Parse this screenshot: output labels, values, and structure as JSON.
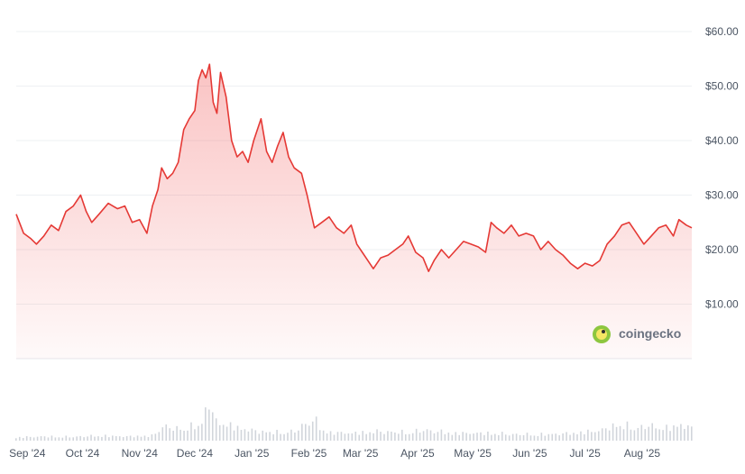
{
  "chart_data": {
    "type": "area",
    "title": "",
    "xlabel": "",
    "ylabel": "",
    "ylim": [
      0,
      60
    ],
    "y_ticks": [
      "$10.00",
      "$20.00",
      "$30.00",
      "$40.00",
      "$50.00",
      "$60.00"
    ],
    "y_tick_values": [
      10,
      20,
      30,
      40,
      50,
      60
    ],
    "x_ticks": [
      "Sep '24",
      "Oct '24",
      "Nov '24",
      "Dec '24",
      "Jan '25",
      "Feb '25",
      "Mar '25",
      "Apr '25",
      "May '25",
      "Jun '25",
      "Jul '25",
      "Aug '25"
    ],
    "x_tick_dates": [
      "2024-09-01",
      "2024-10-01",
      "2024-11-01",
      "2024-12-01",
      "2025-01-01",
      "2025-02-01",
      "2025-03-01",
      "2025-04-01",
      "2025-05-01",
      "2025-06-01",
      "2025-07-01",
      "2025-08-01"
    ],
    "x_range": [
      "2024-08-26",
      "2025-08-28"
    ],
    "grid": true,
    "legend": "none",
    "series": [
      {
        "kind": "price",
        "color": "#e53935",
        "points": [
          [
            "2024-08-26",
            26.5
          ],
          [
            "2024-08-30",
            23.0
          ],
          [
            "2024-09-03",
            22.0
          ],
          [
            "2024-09-06",
            21.0
          ],
          [
            "2024-09-10",
            22.5
          ],
          [
            "2024-09-14",
            24.5
          ],
          [
            "2024-09-18",
            23.5
          ],
          [
            "2024-09-22",
            27.0
          ],
          [
            "2024-09-26",
            28.0
          ],
          [
            "2024-09-30",
            30.0
          ],
          [
            "2024-10-03",
            27.0
          ],
          [
            "2024-10-06",
            25.0
          ],
          [
            "2024-10-10",
            26.5
          ],
          [
            "2024-10-15",
            28.5
          ],
          [
            "2024-10-20",
            27.5
          ],
          [
            "2024-10-24",
            28.0
          ],
          [
            "2024-10-28",
            25.0
          ],
          [
            "2024-11-01",
            25.5
          ],
          [
            "2024-11-05",
            23.0
          ],
          [
            "2024-11-08",
            28.0
          ],
          [
            "2024-11-11",
            31.0
          ],
          [
            "2024-11-13",
            35.0
          ],
          [
            "2024-11-16",
            33.0
          ],
          [
            "2024-11-19",
            34.0
          ],
          [
            "2024-11-22",
            36.0
          ],
          [
            "2024-11-25",
            42.0
          ],
          [
            "2024-11-28",
            44.0
          ],
          [
            "2024-12-01",
            45.5
          ],
          [
            "2024-12-03",
            51.0
          ],
          [
            "2024-12-05",
            53.0
          ],
          [
            "2024-12-07",
            51.5
          ],
          [
            "2024-12-09",
            54.0
          ],
          [
            "2024-12-11",
            47.0
          ],
          [
            "2024-12-13",
            45.0
          ],
          [
            "2024-12-15",
            52.5
          ],
          [
            "2024-12-18",
            48.0
          ],
          [
            "2024-12-21",
            40.0
          ],
          [
            "2024-12-24",
            37.0
          ],
          [
            "2024-12-27",
            38.0
          ],
          [
            "2024-12-30",
            36.0
          ],
          [
            "2025-01-02",
            40.0
          ],
          [
            "2025-01-06",
            44.0
          ],
          [
            "2025-01-09",
            38.0
          ],
          [
            "2025-01-12",
            36.0
          ],
          [
            "2025-01-15",
            39.0
          ],
          [
            "2025-01-18",
            41.5
          ],
          [
            "2025-01-21",
            37.0
          ],
          [
            "2025-01-24",
            35.0
          ],
          [
            "2025-01-28",
            34.0
          ],
          [
            "2025-01-31",
            30.0
          ],
          [
            "2025-02-02",
            27.0
          ],
          [
            "2025-02-04",
            24.0
          ],
          [
            "2025-02-08",
            25.0
          ],
          [
            "2025-02-12",
            26.0
          ],
          [
            "2025-02-16",
            24.0
          ],
          [
            "2025-02-20",
            23.0
          ],
          [
            "2025-02-24",
            24.5
          ],
          [
            "2025-02-27",
            21.0
          ],
          [
            "2025-03-02",
            19.5
          ],
          [
            "2025-03-05",
            18.0
          ],
          [
            "2025-03-08",
            16.5
          ],
          [
            "2025-03-12",
            18.5
          ],
          [
            "2025-03-16",
            19.0
          ],
          [
            "2025-03-20",
            20.0
          ],
          [
            "2025-03-24",
            21.0
          ],
          [
            "2025-03-27",
            22.5
          ],
          [
            "2025-03-31",
            19.5
          ],
          [
            "2025-04-04",
            18.5
          ],
          [
            "2025-04-07",
            16.0
          ],
          [
            "2025-04-10",
            18.0
          ],
          [
            "2025-04-14",
            20.0
          ],
          [
            "2025-04-18",
            18.5
          ],
          [
            "2025-04-22",
            20.0
          ],
          [
            "2025-04-26",
            21.5
          ],
          [
            "2025-04-30",
            21.0
          ],
          [
            "2025-05-04",
            20.5
          ],
          [
            "2025-05-08",
            19.5
          ],
          [
            "2025-05-11",
            25.0
          ],
          [
            "2025-05-14",
            24.0
          ],
          [
            "2025-05-18",
            23.0
          ],
          [
            "2025-05-22",
            24.5
          ],
          [
            "2025-05-26",
            22.5
          ],
          [
            "2025-05-30",
            23.0
          ],
          [
            "2025-06-03",
            22.5
          ],
          [
            "2025-06-07",
            20.0
          ],
          [
            "2025-06-11",
            21.5
          ],
          [
            "2025-06-15",
            20.0
          ],
          [
            "2025-06-19",
            19.0
          ],
          [
            "2025-06-23",
            17.5
          ],
          [
            "2025-06-27",
            16.5
          ],
          [
            "2025-07-01",
            17.5
          ],
          [
            "2025-07-05",
            17.0
          ],
          [
            "2025-07-09",
            18.0
          ],
          [
            "2025-07-13",
            21.0
          ],
          [
            "2025-07-17",
            22.5
          ],
          [
            "2025-07-21",
            24.5
          ],
          [
            "2025-07-25",
            25.0
          ],
          [
            "2025-07-29",
            23.0
          ],
          [
            "2025-08-02",
            21.0
          ],
          [
            "2025-08-06",
            22.5
          ],
          [
            "2025-08-10",
            24.0
          ],
          [
            "2025-08-14",
            24.5
          ],
          [
            "2025-08-18",
            22.5
          ],
          [
            "2025-08-21",
            25.5
          ],
          [
            "2025-08-25",
            24.5
          ],
          [
            "2025-08-28",
            24.0
          ]
        ]
      },
      {
        "kind": "volume",
        "color": "#d1d5db",
        "points": [
          [
            "2024-08-26",
            0.08
          ],
          [
            "2024-09-10",
            0.1
          ],
          [
            "2024-09-25",
            0.09
          ],
          [
            "2024-10-10",
            0.12
          ],
          [
            "2024-10-25",
            0.1
          ],
          [
            "2024-11-08",
            0.12
          ],
          [
            "2024-11-14",
            0.35
          ],
          [
            "2024-11-20",
            0.28
          ],
          [
            "2024-11-25",
            0.3
          ],
          [
            "2024-12-01",
            0.35
          ],
          [
            "2024-12-05",
            0.42
          ],
          [
            "2024-12-09",
            1.0
          ],
          [
            "2024-12-12",
            0.45
          ],
          [
            "2024-12-18",
            0.4
          ],
          [
            "2024-12-25",
            0.3
          ],
          [
            "2025-01-05",
            0.22
          ],
          [
            "2025-01-15",
            0.2
          ],
          [
            "2025-01-25",
            0.22
          ],
          [
            "2025-02-03",
            0.55
          ],
          [
            "2025-02-10",
            0.2
          ],
          [
            "2025-02-25",
            0.18
          ],
          [
            "2025-03-10",
            0.22
          ],
          [
            "2025-03-25",
            0.2
          ],
          [
            "2025-04-07",
            0.25
          ],
          [
            "2025-04-20",
            0.18
          ],
          [
            "2025-05-10",
            0.18
          ],
          [
            "2025-05-25",
            0.15
          ],
          [
            "2025-06-10",
            0.15
          ],
          [
            "2025-06-25",
            0.18
          ],
          [
            "2025-07-10",
            0.25
          ],
          [
            "2025-07-20",
            0.4
          ],
          [
            "2025-07-28",
            0.3
          ],
          [
            "2025-08-05",
            0.35
          ],
          [
            "2025-08-15",
            0.3
          ],
          [
            "2025-08-22",
            0.38
          ],
          [
            "2025-08-28",
            0.3
          ]
        ]
      }
    ]
  },
  "watermark": {
    "text": "coingecko",
    "icon": "gecko-logo-icon"
  }
}
